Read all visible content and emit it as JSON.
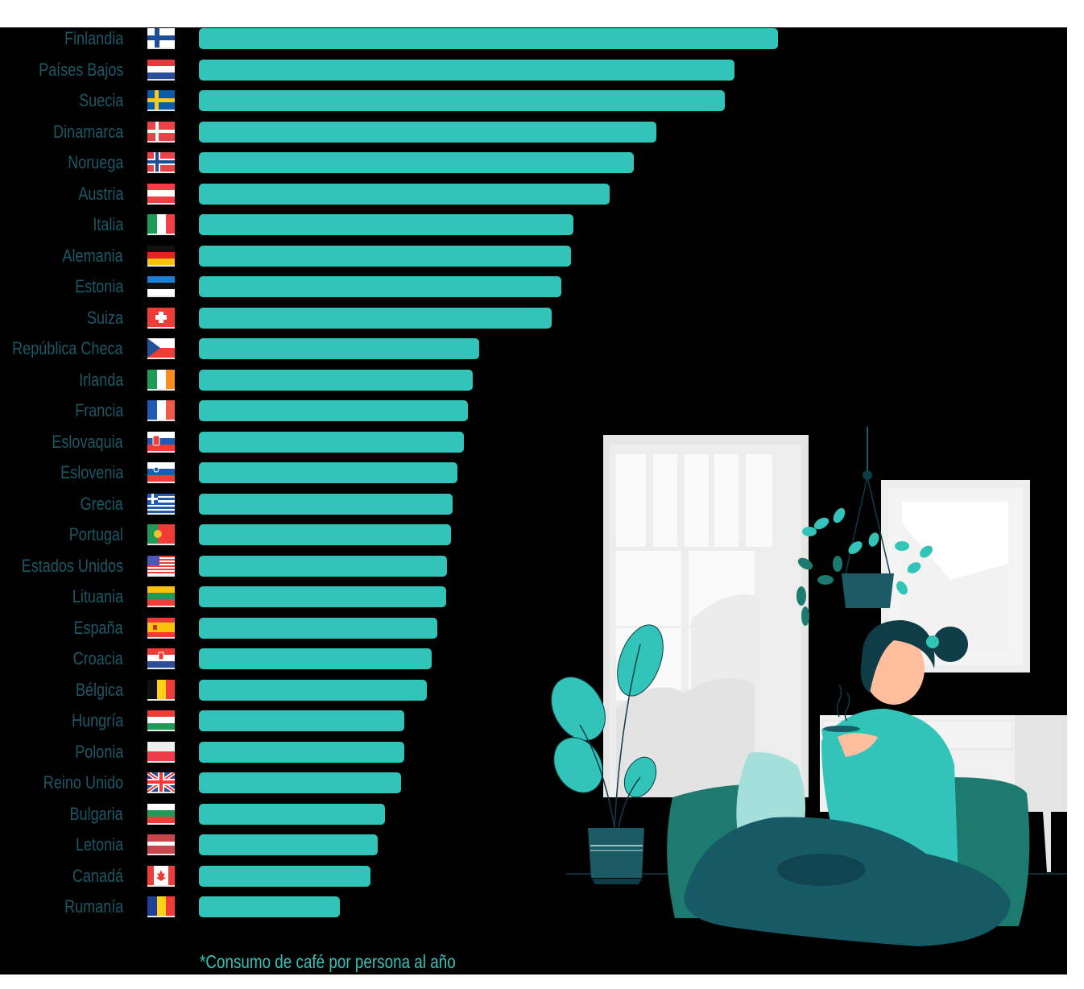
{
  "chart_data": {
    "type": "bar",
    "orientation": "horizontal",
    "title": "",
    "xlabel": "",
    "ylabel": "",
    "grid": false,
    "legend": null,
    "value_labels_shown": false,
    "value_unit": "relative bar length (px); no numeric axis shown",
    "scale_max": 719,
    "footnote": "*Consumo de café por persona al año",
    "categories": [
      "Finlandia",
      "Países Bajos",
      "Suecia",
      "Dinamarca",
      "Noruega",
      "Austria",
      "Italia",
      "Alemania",
      "Estonia",
      "Suiza",
      "República Checa",
      "Irlanda",
      "Francia",
      "Eslovaquia",
      "Eslovenia",
      "Grecia",
      "Portugal",
      "Estados Unidos",
      "Lituania",
      "España",
      "Croacia",
      "Bélgica",
      "Hungría",
      "Polonia",
      "Reino  Unido",
      "Bulgaria",
      "Letonia",
      "Canadá",
      "Rumanía"
    ],
    "values": [
      719,
      665,
      653,
      568,
      540,
      510,
      465,
      462,
      450,
      438,
      348,
      340,
      334,
      329,
      321,
      315,
      313,
      308,
      307,
      296,
      289,
      283,
      255,
      255,
      251,
      231,
      222,
      213,
      175
    ],
    "flags": [
      "fi",
      "nl",
      "se",
      "dk",
      "no",
      "at",
      "it",
      "de",
      "ee",
      "ch",
      "cz",
      "ie",
      "fr",
      "sk",
      "si",
      "gr",
      "pt",
      "us",
      "lt",
      "es",
      "hr",
      "be",
      "hu",
      "pl",
      "gb",
      "bg",
      "lv",
      "ca",
      "ro"
    ]
  },
  "colors": {
    "bar": "#33c4b9",
    "label": "#1d5866",
    "background": "#000000",
    "footnote": "#33c4b9"
  },
  "footnote": "*Consumo de café por persona al año",
  "illustration": {
    "description": "woman-drinking-coffee-on-sofa"
  }
}
